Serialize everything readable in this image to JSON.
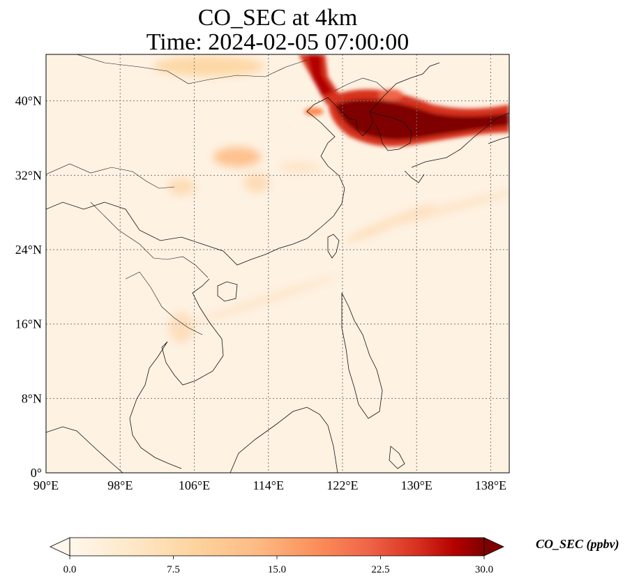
{
  "title": {
    "line1": "CO_SEC at 4km",
    "line2": "Time: 2024-02-05 07:00:00"
  },
  "map": {
    "variable": "CO_SEC",
    "level": "4km",
    "time": "2024-02-05 07:00:00",
    "lon_range": [
      90,
      140
    ],
    "lat_range": [
      0,
      45
    ],
    "lon_ticks": [
      {
        "value": 90,
        "label": "90°E"
      },
      {
        "value": 98,
        "label": "98°E"
      },
      {
        "value": 106,
        "label": "106°E"
      },
      {
        "value": 114,
        "label": "114°E"
      },
      {
        "value": 122,
        "label": "122°E"
      },
      {
        "value": 130,
        "label": "130°E"
      },
      {
        "value": 138,
        "label": "138°E"
      }
    ],
    "lat_ticks": [
      {
        "value": 0,
        "label": "0°"
      },
      {
        "value": 8,
        "label": "8°N"
      },
      {
        "value": 16,
        "label": "16°N"
      },
      {
        "value": 24,
        "label": "24°N"
      },
      {
        "value": 32,
        "label": "32°N"
      },
      {
        "value": 40,
        "label": "40°N"
      }
    ],
    "gridlines": true,
    "features": [
      "coastlines",
      "country-borders"
    ]
  },
  "colorbar": {
    "label": "CO_SEC (ppbv)",
    "min": 0,
    "max": 30,
    "colormap": "OrRd",
    "extend": "both",
    "ticks": [
      {
        "value": 0,
        "label": "0.0"
      },
      {
        "value": 7.5,
        "label": "7.5"
      },
      {
        "value": 15,
        "label": "15.0"
      },
      {
        "value": 22.5,
        "label": "22.5"
      },
      {
        "value": 30,
        "label": "30.0"
      }
    ]
  },
  "colors": {
    "low": "#fff7ec",
    "mid": "#fdbb84",
    "high": "#d7301f",
    "max": "#7f0000"
  }
}
